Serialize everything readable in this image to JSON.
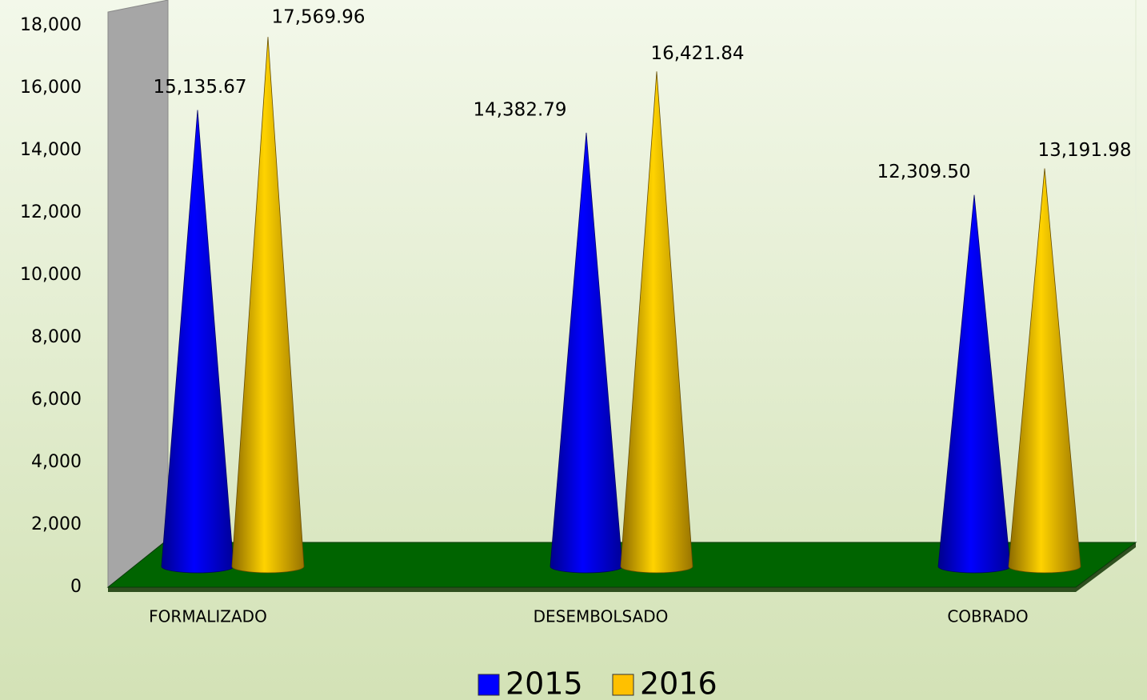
{
  "chart_data": {
    "type": "cone",
    "categories": [
      "FORMALIZADO",
      "DESEMBOLSADO",
      "COBRADO"
    ],
    "series": [
      {
        "name": "2015",
        "color": "#0000ff",
        "values": [
          15135.67,
          14382.79,
          12309.5
        ],
        "value_labels": [
          "15,135.67",
          "14,382.79",
          "12,309.50"
        ]
      },
      {
        "name": "2016",
        "color": "#ffc000",
        "values": [
          17569.96,
          16421.84,
          13191.98
        ],
        "value_labels": [
          "17,569.96",
          "16,421.84",
          "13,191.98"
        ]
      }
    ],
    "ylim": [
      0,
      18000
    ],
    "yticks": [
      0,
      {
        "value": 2000,
        "label": "2,000"
      },
      {
        "value": 4000,
        "label": "4,000"
      },
      {
        "value": 6000,
        "label": "6,000"
      },
      {
        "value": 8000,
        "label": "8,000"
      },
      {
        "value": 10000,
        "label": "10,000"
      },
      {
        "value": 12000,
        "label": "12,000"
      },
      {
        "value": 14000,
        "label": "14,000"
      },
      {
        "value": 16000,
        "label": "16,000"
      },
      {
        "value": 18000,
        "label": "18,000"
      }
    ],
    "legend": "bottom"
  }
}
